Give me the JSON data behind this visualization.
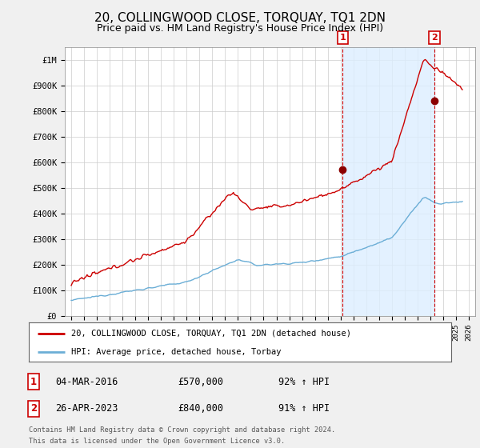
{
  "title": "20, COLLINGWOOD CLOSE, TORQUAY, TQ1 2DN",
  "subtitle": "Price paid vs. HM Land Registry's House Price Index (HPI)",
  "title_fontsize": 11,
  "subtitle_fontsize": 9,
  "ylim": [
    0,
    1050000
  ],
  "yticks": [
    0,
    100000,
    200000,
    300000,
    400000,
    500000,
    600000,
    700000,
    800000,
    900000,
    1000000
  ],
  "ytick_labels": [
    "£0",
    "£100K",
    "£200K",
    "£300K",
    "£400K",
    "£500K",
    "£600K",
    "£700K",
    "£800K",
    "£900K",
    "£1M"
  ],
  "xlim_start": 1994.5,
  "xlim_end": 2026.5,
  "hpi_color": "#6baed6",
  "price_color": "#cc0000",
  "shade_color": "#ddeeff",
  "sale1_year": 2016.17,
  "sale1_price": 570000,
  "sale1_label": "1",
  "sale1_date": "04-MAR-2016",
  "sale1_amount": "£570,000",
  "sale1_hpi": "92% ↑ HPI",
  "sale2_year": 2023.32,
  "sale2_price": 840000,
  "sale2_label": "2",
  "sale2_date": "26-APR-2023",
  "sale2_amount": "£840,000",
  "sale2_hpi": "91% ↑ HPI",
  "legend_line1": "20, COLLINGWOOD CLOSE, TORQUAY, TQ1 2DN (detached house)",
  "legend_line2": "HPI: Average price, detached house, Torbay",
  "footer1": "Contains HM Land Registry data © Crown copyright and database right 2024.",
  "footer2": "This data is licensed under the Open Government Licence v3.0.",
  "background_color": "#f0f0f0",
  "plot_bg_color": "#ffffff",
  "grid_color": "#cccccc"
}
